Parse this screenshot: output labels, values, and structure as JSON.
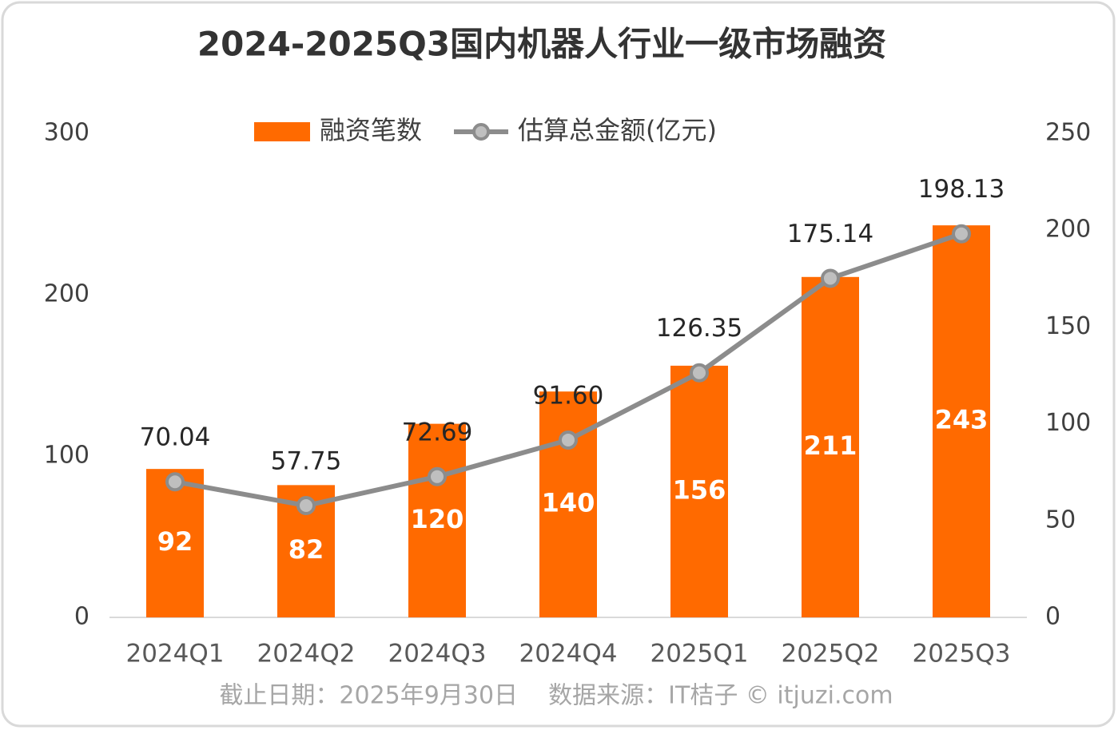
{
  "chart_data": {
    "type": "bar",
    "title": "2024-2025Q3国内机器人行业一级市场融资",
    "categories": [
      "2024Q1",
      "2024Q2",
      "2024Q3",
      "2024Q4",
      "2025Q1",
      "2025Q2",
      "2025Q3"
    ],
    "series": [
      {
        "name": "融资笔数",
        "type": "bar",
        "color": "#ff6a00",
        "values": [
          92,
          82,
          120,
          140,
          156,
          211,
          243
        ]
      },
      {
        "name": "估算总金额(亿元)",
        "type": "line",
        "color": "#8c8c8c",
        "axis": "y2",
        "values": [
          70.04,
          57.75,
          72.69,
          91.6,
          126.35,
          175.14,
          198.13
        ],
        "value_labels": [
          "70.04",
          "57.75",
          "72.69",
          "91.60",
          "126.35",
          "175.14",
          "198.13"
        ]
      }
    ],
    "ylim": [
      0,
      300
    ],
    "yticks": [
      0,
      100,
      200,
      300
    ],
    "y2lim": [
      0,
      250
    ],
    "y2ticks": [
      0,
      50,
      100,
      150,
      200,
      250
    ],
    "grid": false,
    "legend": "top",
    "footnote": "截止日期：2025年9月30日    数据来源：IT桔子 © itjuzi.com"
  }
}
